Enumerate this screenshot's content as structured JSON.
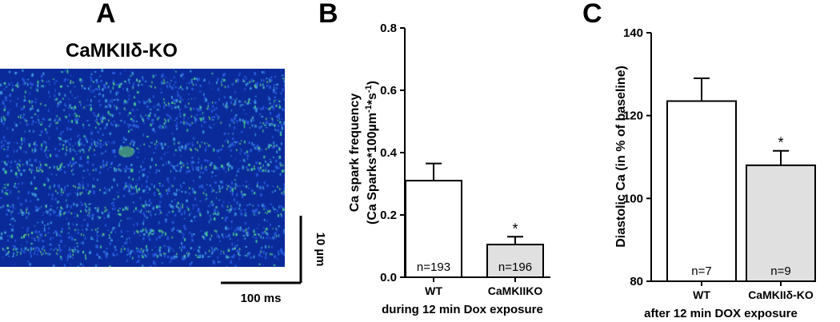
{
  "panels": {
    "a": {
      "letter": "A",
      "title": "CaMKIIδ-KO",
      "scale_time": "100 ms",
      "scale_space": "10 µm"
    },
    "b": {
      "letter": "B"
    },
    "c": {
      "letter": "C"
    }
  },
  "colors": {
    "bar_wt": "#ffffff",
    "bar_ko": "#e0e0e0",
    "heat_bg": "#0a2a9a",
    "heat_spark": "#2ecc8a"
  },
  "chart_data": [
    {
      "type": "heatmap",
      "title": "CaMKIIδ-KO",
      "xlabel": "100 ms",
      "ylabel": "10 µm"
    },
    {
      "type": "bar",
      "categories": [
        "WT",
        "CaMKIIKO"
      ],
      "values": [
        0.31,
        0.105
      ],
      "errors": [
        0.055,
        0.025
      ],
      "n_labels": [
        "n=193",
        "n=196"
      ],
      "significance": [
        "",
        "*"
      ],
      "ylabel_line1": "Ca spark frequency",
      "ylabel_line2": "(Ca Sparks*100µm",
      "ylabel_sup1": "-1",
      "ylabel_mid": "*s",
      "ylabel_sup2": "-1",
      "ylabel_end": ")",
      "xlabel": "during 12 min Dox exposure",
      "ylim": [
        0,
        0.8
      ],
      "yticks": [
        0.0,
        0.2,
        0.4,
        0.6,
        0.8
      ],
      "ytick_labels": [
        "0.0",
        "0.2",
        "0.4",
        "0.6",
        "0.8"
      ]
    },
    {
      "type": "bar",
      "categories": [
        "WT",
        "CaMKIIδ-KO"
      ],
      "values": [
        123.5,
        108
      ],
      "errors": [
        5.5,
        3.5
      ],
      "n_labels": [
        "n=7",
        "n=9"
      ],
      "significance": [
        "",
        "*"
      ],
      "ylabel": "Diastolic Ca (in % of baseline)",
      "xlabel": "after 12 min DOX exposure",
      "ylim": [
        80,
        140
      ],
      "yticks": [
        80,
        100,
        120,
        140
      ],
      "ytick_labels": [
        "80",
        "100",
        "120",
        "140"
      ]
    }
  ]
}
